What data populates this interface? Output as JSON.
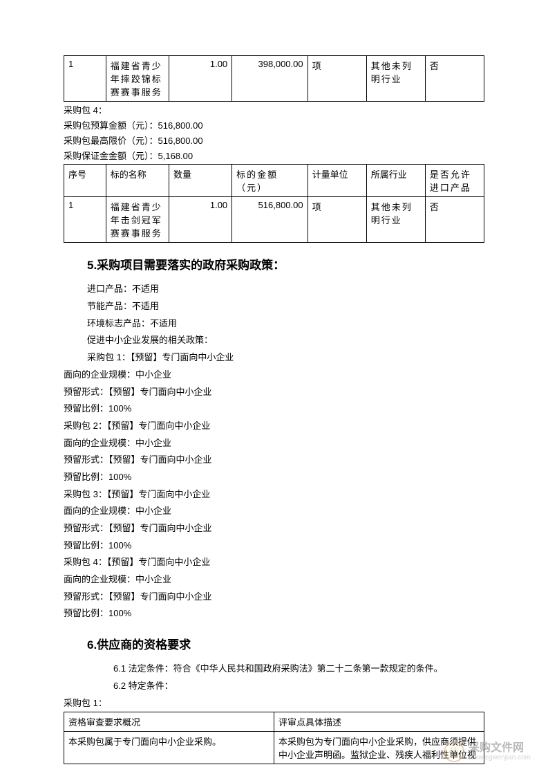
{
  "table1": {
    "rows": [
      {
        "seq": "1",
        "name": "福建省青少年摔跤锦标赛赛事服务",
        "qty": "1.00",
        "amount": "398,000.00",
        "unit": "项",
        "industry": "其他未列明行业",
        "import": "否"
      }
    ]
  },
  "pkg4_header": {
    "title": "采购包 4：",
    "budget": "采购包预算金额（元）：516,800.00",
    "limit": "采购包最高限价（元）：516,800.00",
    "deposit": "采购保证金金额（元）：5,168.00"
  },
  "table2": {
    "headers": {
      "seq": "序号",
      "name": "标的名称",
      "qty": "数量",
      "amount": "标的金额（元）",
      "unit": "计量单位",
      "industry": "所属行业",
      "import": "是否允许进口产品"
    },
    "rows": [
      {
        "seq": "1",
        "name": "福建省青少年击剑冠军赛赛事服务",
        "qty": "1.00",
        "amount": "516,800.00",
        "unit": "项",
        "industry": "其他未列明行业",
        "import": "否"
      }
    ]
  },
  "section5": {
    "heading": "5.采购项目需要落实的政府采购政策：",
    "lines_indent": [
      "进口产品：不适用",
      "节能产品：不适用",
      "环境标志产品：不适用",
      "促进中小企业发展的相关政策：",
      "采购包 1：【预留】专门面向中小企业"
    ],
    "lines_noindent": [
      "面向的企业规模：中小企业",
      "预留形式：【预留】专门面向中小企业",
      "预留比例：100%",
      "采购包 2：【预留】专门面向中小企业",
      "面向的企业规模：中小企业",
      "预留形式：【预留】专门面向中小企业",
      "预留比例：100%",
      "采购包 3：【预留】专门面向中小企业",
      "面向的企业规模：中小企业",
      "预留形式：【预留】专门面向中小企业",
      "预留比例：100%",
      "采购包 4：【预留】专门面向中小企业",
      "面向的企业规模：中小企业",
      "预留形式：【预留】专门面向中小企业",
      "预留比例：100%"
    ]
  },
  "section6": {
    "heading": "6.供应商的资格要求",
    "line1": "6.1 法定条件：符合《中华人民共和国政府采购法》第二十二条第一款规定的条件。",
    "line2": "6.2 特定条件：",
    "pkg": "采购包 1：",
    "table": {
      "h1": "资格审查要求概况",
      "h2": "评审点具体描述",
      "r1c1": "本采购包属于专门面向中小企业采购。",
      "r1c2": "本采购包为专门面向中小企业采购，供应商须提供中小企业声明函。监狱企业、残疾人福利性单位视"
    }
  },
  "watermark": {
    "icon": "佰",
    "main": "采购文件网",
    "sub": "www.cgwenjian.com"
  }
}
